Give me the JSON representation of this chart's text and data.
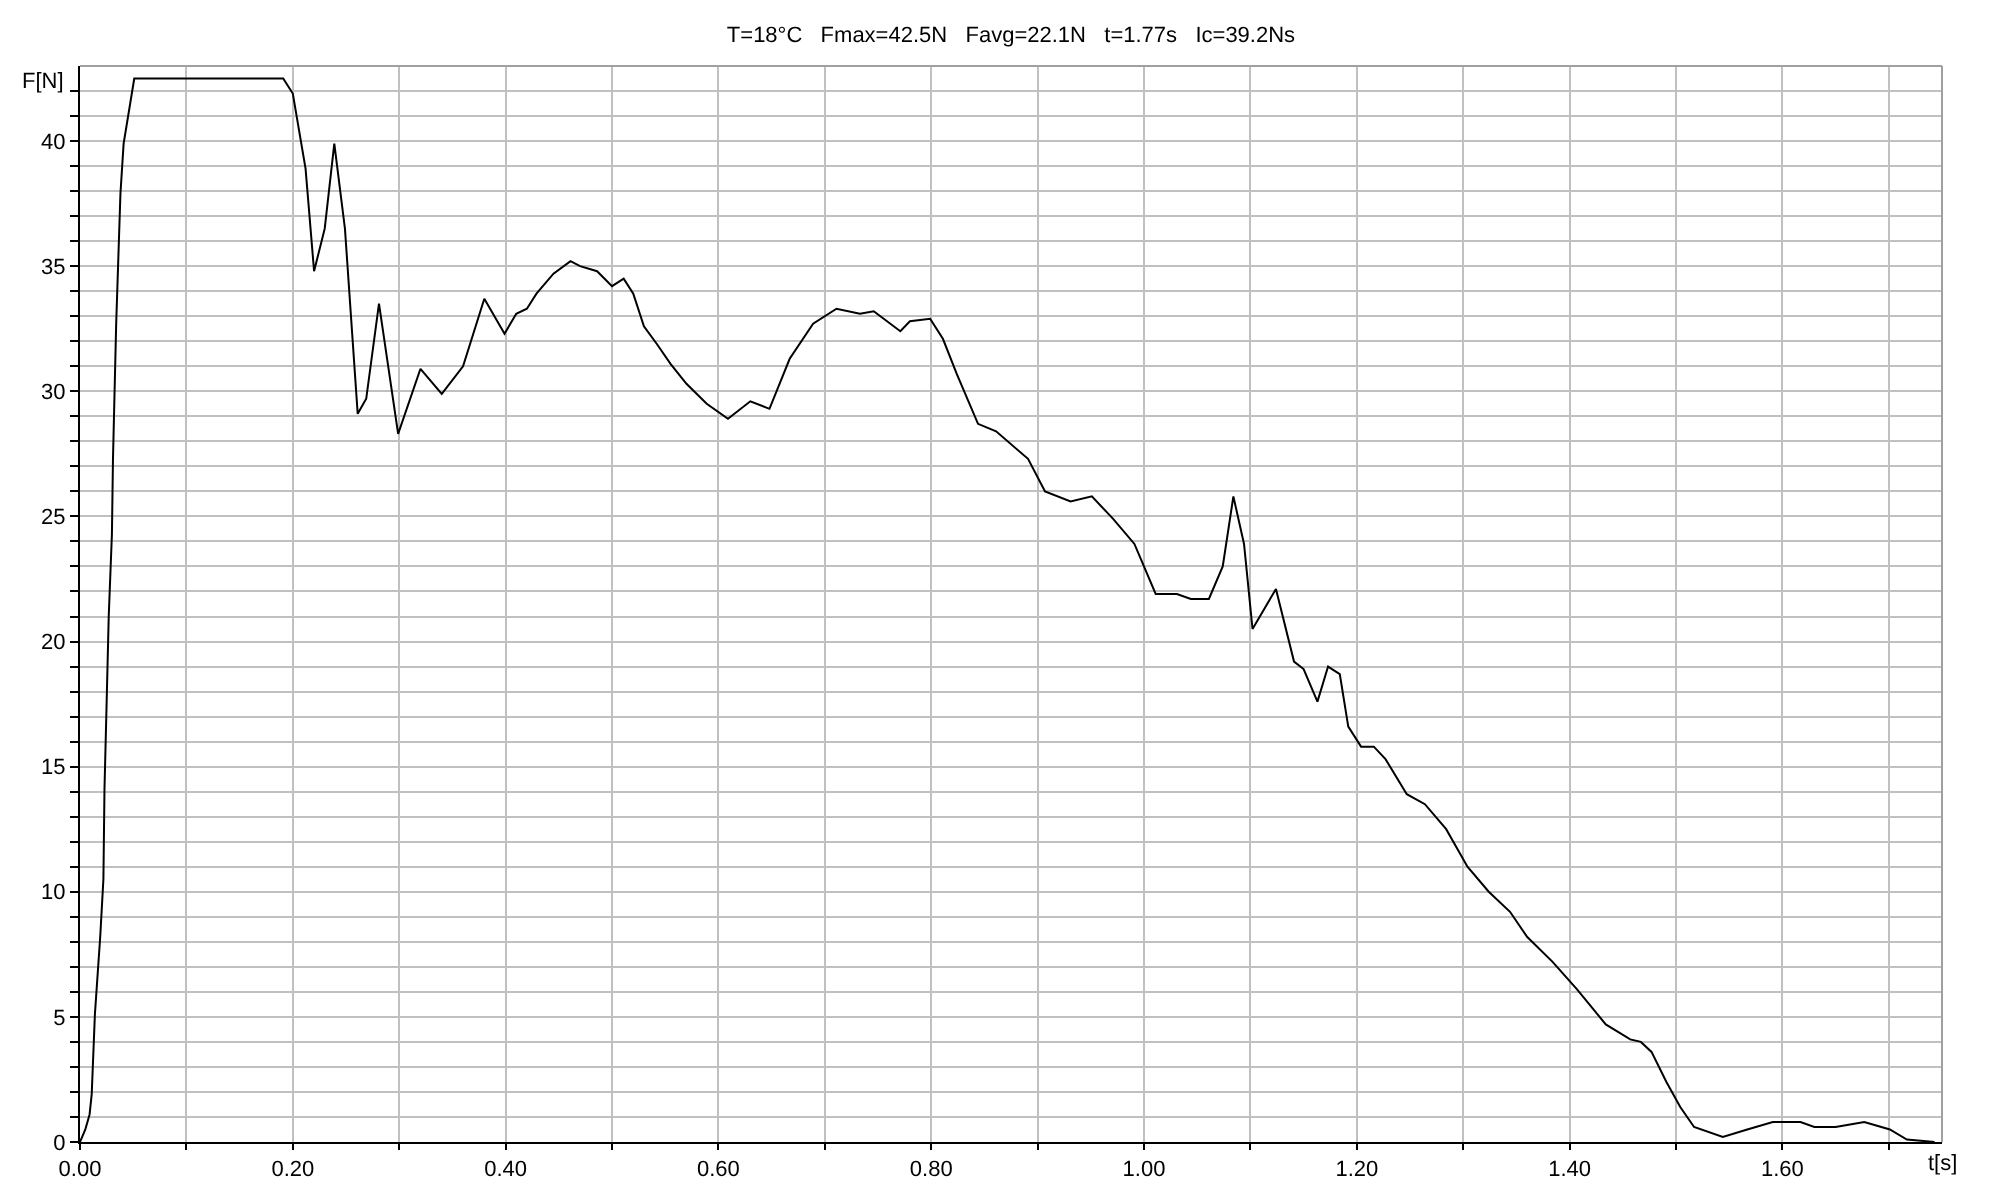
{
  "chart_data": {
    "type": "line",
    "title": "T=18°C   Fmax=42.5N   Favg=22.1N   t=1.77s   Ic=39.2Ns",
    "xlabel": "t[s]",
    "ylabel": "F[N]",
    "x": [
      0,
      0.005,
      0.009,
      0.011,
      0.014,
      0.019,
      0.022,
      0.023,
      0.025,
      0.027,
      0.03,
      0.031,
      0.034,
      0.038,
      0.041,
      0.051,
      0.191,
      0.2,
      0.212,
      0.22,
      0.23,
      0.239,
      0.249,
      0.261,
      0.269,
      0.281,
      0.299,
      0.32,
      0.34,
      0.36,
      0.38,
      0.399,
      0.41,
      0.42,
      0.429,
      0.445,
      0.461,
      0.47,
      0.486,
      0.5,
      0.511,
      0.52,
      0.53,
      0.542,
      0.555,
      0.57,
      0.589,
      0.609,
      0.63,
      0.648,
      0.667,
      0.689,
      0.711,
      0.733,
      0.746,
      0.771,
      0.78,
      0.799,
      0.811,
      0.824,
      0.844,
      0.861,
      0.891,
      0.907,
      0.931,
      0.951,
      0.971,
      0.991,
      1.011,
      1.031,
      1.044,
      1.061,
      1.074,
      1.084,
      1.094,
      1.102,
      1.124,
      1.141,
      1.15,
      1.163,
      1.173,
      1.184,
      1.192,
      1.204,
      1.216,
      1.227,
      1.247,
      1.264,
      1.284,
      1.304,
      1.324,
      1.344,
      1.36,
      1.384,
      1.407,
      1.434,
      1.457,
      1.467,
      1.477,
      1.491,
      1.504,
      1.517,
      1.544,
      1.567,
      1.591,
      1.617,
      1.63,
      1.65,
      1.677,
      1.701,
      1.717,
      1.743
    ],
    "series": [
      {
        "color": "#000000",
        "values": [
          0,
          0.5,
          1.1,
          1.9,
          5.1,
          8.2,
          10.5,
          14.1,
          17.5,
          21,
          24.3,
          27.3,
          32.7,
          37.9,
          39.9,
          42.5,
          42.5,
          41.9,
          38.9,
          34.8,
          36.5,
          39.9,
          36.5,
          29.1,
          29.7,
          33.5,
          28.3,
          30.9,
          29.9,
          31.0,
          33.7,
          32.3,
          33.1,
          33.3,
          33.9,
          34.7,
          35.2,
          35.0,
          34.8,
          34.2,
          34.5,
          33.9,
          32.6,
          31.9,
          31.1,
          30.3,
          29.5,
          28.9,
          29.6,
          29.3,
          31.3,
          32.7,
          33.3,
          33.1,
          33.2,
          32.4,
          32.8,
          32.9,
          32.1,
          30.7,
          28.7,
          28.4,
          27.3,
          26.0,
          25.6,
          25.8,
          24.9,
          23.9,
          21.9,
          21.9,
          21.7,
          21.7,
          23.0,
          25.8,
          23.9,
          20.5,
          22.1,
          19.2,
          18.9,
          17.6,
          19.0,
          18.7,
          16.6,
          15.8,
          15.8,
          15.3,
          13.9,
          13.5,
          12.5,
          11.0,
          10.0,
          9.2,
          8.2,
          7.2,
          6.1,
          4.7,
          4.1,
          4.0,
          3.6,
          2.4,
          1.4,
          0.6,
          0.2,
          0.5,
          0.8,
          0.8,
          0.6,
          0.6,
          0.8,
          0.5,
          0.1,
          0
        ]
      }
    ],
    "xlim": [
      0,
      1.75
    ],
    "xticks": [
      {
        "value": 0,
        "label": "0.00"
      },
      {
        "value": 0.1,
        "label": null
      },
      {
        "value": 0.2,
        "label": "0.20"
      },
      {
        "value": 0.3,
        "label": null
      },
      {
        "value": 0.4,
        "label": "0.40"
      },
      {
        "value": 0.5,
        "label": null
      },
      {
        "value": 0.6,
        "label": "0.60"
      },
      {
        "value": 0.7,
        "label": null
      },
      {
        "value": 0.8,
        "label": "0.80"
      },
      {
        "value": 0.9,
        "label": null
      },
      {
        "value": 1.0,
        "label": "1.00"
      },
      {
        "value": 1.1,
        "label": null
      },
      {
        "value": 1.2,
        "label": "1.20"
      },
      {
        "value": 1.3,
        "label": null
      },
      {
        "value": 1.4,
        "label": "1.40"
      },
      {
        "value": 1.5,
        "label": null
      },
      {
        "value": 1.6,
        "label": "1.60"
      },
      {
        "value": 1.7,
        "label": null
      }
    ],
    "ylim": [
      0,
      43
    ],
    "yticks": [
      0,
      {
        "value": 1,
        "label": null
      },
      {
        "value": 2,
        "label": null
      },
      {
        "value": 3,
        "label": null
      },
      {
        "value": 4,
        "label": null
      },
      5,
      {
        "value": 6,
        "label": null
      },
      {
        "value": 7,
        "label": null
      },
      {
        "value": 8,
        "label": null
      },
      {
        "value": 9,
        "label": null
      },
      10,
      {
        "value": 11,
        "label": null
      },
      {
        "value": 12,
        "label": null
      },
      {
        "value": 13,
        "label": null
      },
      {
        "value": 14,
        "label": null
      },
      15,
      {
        "value": 16,
        "label": null
      },
      {
        "value": 17,
        "label": null
      },
      {
        "value": 18,
        "label": null
      },
      {
        "value": 19,
        "label": null
      },
      20,
      {
        "value": 21,
        "label": null
      },
      {
        "value": 22,
        "label": null
      },
      {
        "value": 23,
        "label": null
      },
      {
        "value": 24,
        "label": null
      },
      25,
      {
        "value": 26,
        "label": null
      },
      {
        "value": 27,
        "label": null
      },
      {
        "value": 28,
        "label": null
      },
      {
        "value": 29,
        "label": null
      },
      30,
      {
        "value": 31,
        "label": null
      },
      {
        "value": 32,
        "label": null
      },
      {
        "value": 33,
        "label": null
      },
      {
        "value": 34,
        "label": null
      },
      35,
      {
        "value": 36,
        "label": null
      },
      {
        "value": 37,
        "label": null
      },
      {
        "value": 38,
        "label": null
      },
      {
        "value": 39,
        "label": null
      },
      40,
      {
        "value": 41,
        "label": null
      },
      {
        "value": 42,
        "label": null
      }
    ],
    "grid": true,
    "marker": "none",
    "line_style": "solid"
  }
}
